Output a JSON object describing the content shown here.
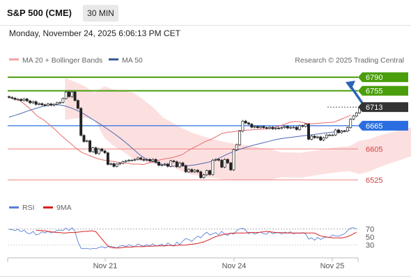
{
  "header": {
    "title": "S&P 500 (CME)",
    "timeframe": "30 MIN",
    "timestamp": "Monday, November 24, 2025 6:06:13 PM CET"
  },
  "legend": {
    "ma20_bb": "MA 20 + Bollinger Bands",
    "ma50": "MA 50",
    "copyright": "Research © 2025 Trading Central"
  },
  "rsi_legend": {
    "rsi": "RSI",
    "ma9": "9MA"
  },
  "colors": {
    "green": "#4a9e0b",
    "blue": "#2a6de0",
    "red": "#f08080",
    "current": "#333333",
    "ma20": "#e96a6a",
    "ma50": "#4a67b0",
    "band": "#fbd6d6",
    "arrow": "#2c63b8",
    "rsi": "#5a7fd8",
    "rsi_ma": "#d62020"
  },
  "chart_data": [
    {
      "type": "candlestick",
      "ylim": [
        6480,
        6810
      ],
      "x_ticks": [
        "Nov 21",
        "Nov 24",
        "Nov 25"
      ],
      "levels": [
        {
          "value": 6790,
          "label": "6790",
          "kind": "resistance"
        },
        {
          "value": 6755,
          "label": "6755",
          "kind": "resistance"
        },
        {
          "value": 6713,
          "label": "6713",
          "kind": "current"
        },
        {
          "value": 6665,
          "label": "6665",
          "kind": "pivot"
        },
        {
          "value": 6605,
          "label": "6605",
          "kind": "support"
        },
        {
          "value": 6525,
          "label": "6525",
          "kind": "support"
        }
      ],
      "series": [
        {
          "name": "S&P 500",
          "close": [
            6738,
            6736,
            6733,
            6733,
            6730,
            6734,
            6729,
            6724,
            6727,
            6720,
            6722,
            6719,
            6717,
            6721,
            6718,
            6720,
            6724,
            6725,
            6735,
            6752,
            6740,
            6752,
            6730,
            6710,
            6640,
            6624,
            6626,
            6598,
            6608,
            6593,
            6605,
            6600,
            6595,
            6565,
            6567,
            6560,
            6566,
            6568,
            6572,
            6574,
            6576,
            6576,
            6578,
            6582,
            6578,
            6576,
            6578,
            6574,
            6578,
            6571,
            6563,
            6564,
            6566,
            6560,
            6574,
            6572,
            6559,
            6569,
            6562,
            6546,
            6552,
            6546,
            6550,
            6546,
            6531,
            6538,
            6549,
            6539,
            6576,
            6578,
            6576,
            6558,
            6578,
            6569,
            6551,
            6603,
            6616,
            6651,
            6677,
            6672,
            6669,
            6661,
            6663,
            6660,
            6663,
            6660,
            6658,
            6661,
            6657,
            6659,
            6658,
            6660,
            6663,
            6659,
            6661,
            6661,
            6655,
            6665,
            6663,
            6669,
            6630,
            6638,
            6634,
            6636,
            6628,
            6634,
            6641,
            6641,
            6641,
            6654,
            6647,
            6651,
            6651,
            6660,
            6682,
            6690,
            6698,
            6713
          ]
        },
        {
          "name": "MA 20",
          "values": [
            6738,
            6734,
            6729,
            6718,
            6705,
            6690,
            6682,
            6670,
            6658,
            6644,
            6631,
            6619,
            6606,
            6596,
            6590,
            6584,
            6579,
            6576,
            6574,
            6572,
            6569,
            6568,
            6566,
            6566,
            6565,
            6569,
            6573,
            6577,
            6580,
            6582,
            6586,
            6591,
            6601,
            6609,
            6616,
            6624,
            6629,
            6637,
            6645,
            6648,
            6649,
            6652,
            6653,
            6654,
            6655,
            6656,
            6657,
            6659,
            6663,
            6668,
            6673,
            6676,
            6675,
            6671,
            6670,
            6671,
            6672,
            6673,
            6674,
            6680,
            6686,
            6692
          ]
        },
        {
          "name": "MA 50",
          "values": [
            6687,
            6692,
            6697,
            6703,
            6708,
            6713,
            6717,
            6720,
            6719,
            6716,
            6711,
            6704,
            6696,
            6686,
            6676,
            6666,
            6655,
            6644,
            6632,
            6619,
            6605,
            6591,
            6580,
            6573,
            6568,
            6564,
            6561,
            6560,
            6561,
            6562,
            6564,
            6567,
            6570,
            6575,
            6582,
            6590,
            6597,
            6603,
            6608,
            6613,
            6617,
            6621,
            6625,
            6629,
            6632,
            6634,
            6636,
            6638,
            6640,
            6642,
            6644,
            6646,
            6648,
            6650,
            6652,
            6653
          ]
        }
      ]
    },
    {
      "type": "line",
      "ylim": [
        0,
        100
      ],
      "y_ticks": [
        30,
        50,
        70
      ],
      "series": [
        {
          "name": "RSI",
          "values": [
            69,
            68,
            66,
            69,
            63,
            67,
            60,
            58,
            64,
            55,
            57,
            63,
            60,
            64,
            60,
            62,
            66,
            67,
            66,
            72,
            66,
            73,
            64,
            38,
            22,
            21,
            22,
            20,
            22,
            21,
            24,
            26,
            23,
            26,
            27,
            25,
            23,
            27,
            29,
            26,
            31,
            28,
            26,
            33,
            29,
            27,
            31,
            28,
            33,
            27,
            29,
            32,
            27,
            35,
            31,
            27,
            37,
            31,
            40,
            46,
            44,
            39,
            46,
            52,
            48,
            56,
            62,
            55,
            58,
            61,
            55,
            64,
            57,
            54,
            60,
            57,
            66,
            70,
            72,
            67,
            58,
            62,
            57,
            60,
            62,
            58,
            57,
            64,
            58,
            60,
            61,
            57,
            62,
            60,
            63,
            58,
            60,
            59,
            61,
            58,
            45,
            48,
            42,
            49,
            44,
            48,
            50,
            49,
            55,
            53,
            52,
            55,
            58,
            66,
            72,
            73,
            70
          ]
        },
        {
          "name": "9MA",
          "values": [
            67,
            66,
            66,
            65,
            64,
            63,
            62,
            61,
            61,
            60,
            60,
            61,
            61,
            61,
            62,
            63,
            64,
            64,
            65,
            65,
            63,
            54,
            45,
            36,
            28,
            24,
            23,
            23,
            23,
            24,
            25,
            25,
            25,
            26,
            26,
            26,
            26,
            27,
            27,
            27,
            28,
            28,
            28,
            28,
            29,
            29,
            29,
            29,
            30,
            30,
            30,
            31,
            32,
            33,
            34,
            36,
            38,
            41,
            44,
            48,
            51,
            53,
            55,
            57,
            58,
            59,
            60,
            60,
            60,
            60,
            60,
            61,
            61,
            61,
            61,
            62,
            63,
            64,
            63,
            62,
            61,
            61,
            61,
            60,
            60,
            60,
            60,
            60,
            60,
            60,
            60,
            60,
            60,
            60,
            56,
            53,
            51,
            50,
            49,
            48,
            48,
            48,
            48,
            49,
            51,
            54,
            58,
            62
          ]
        }
      ]
    }
  ]
}
